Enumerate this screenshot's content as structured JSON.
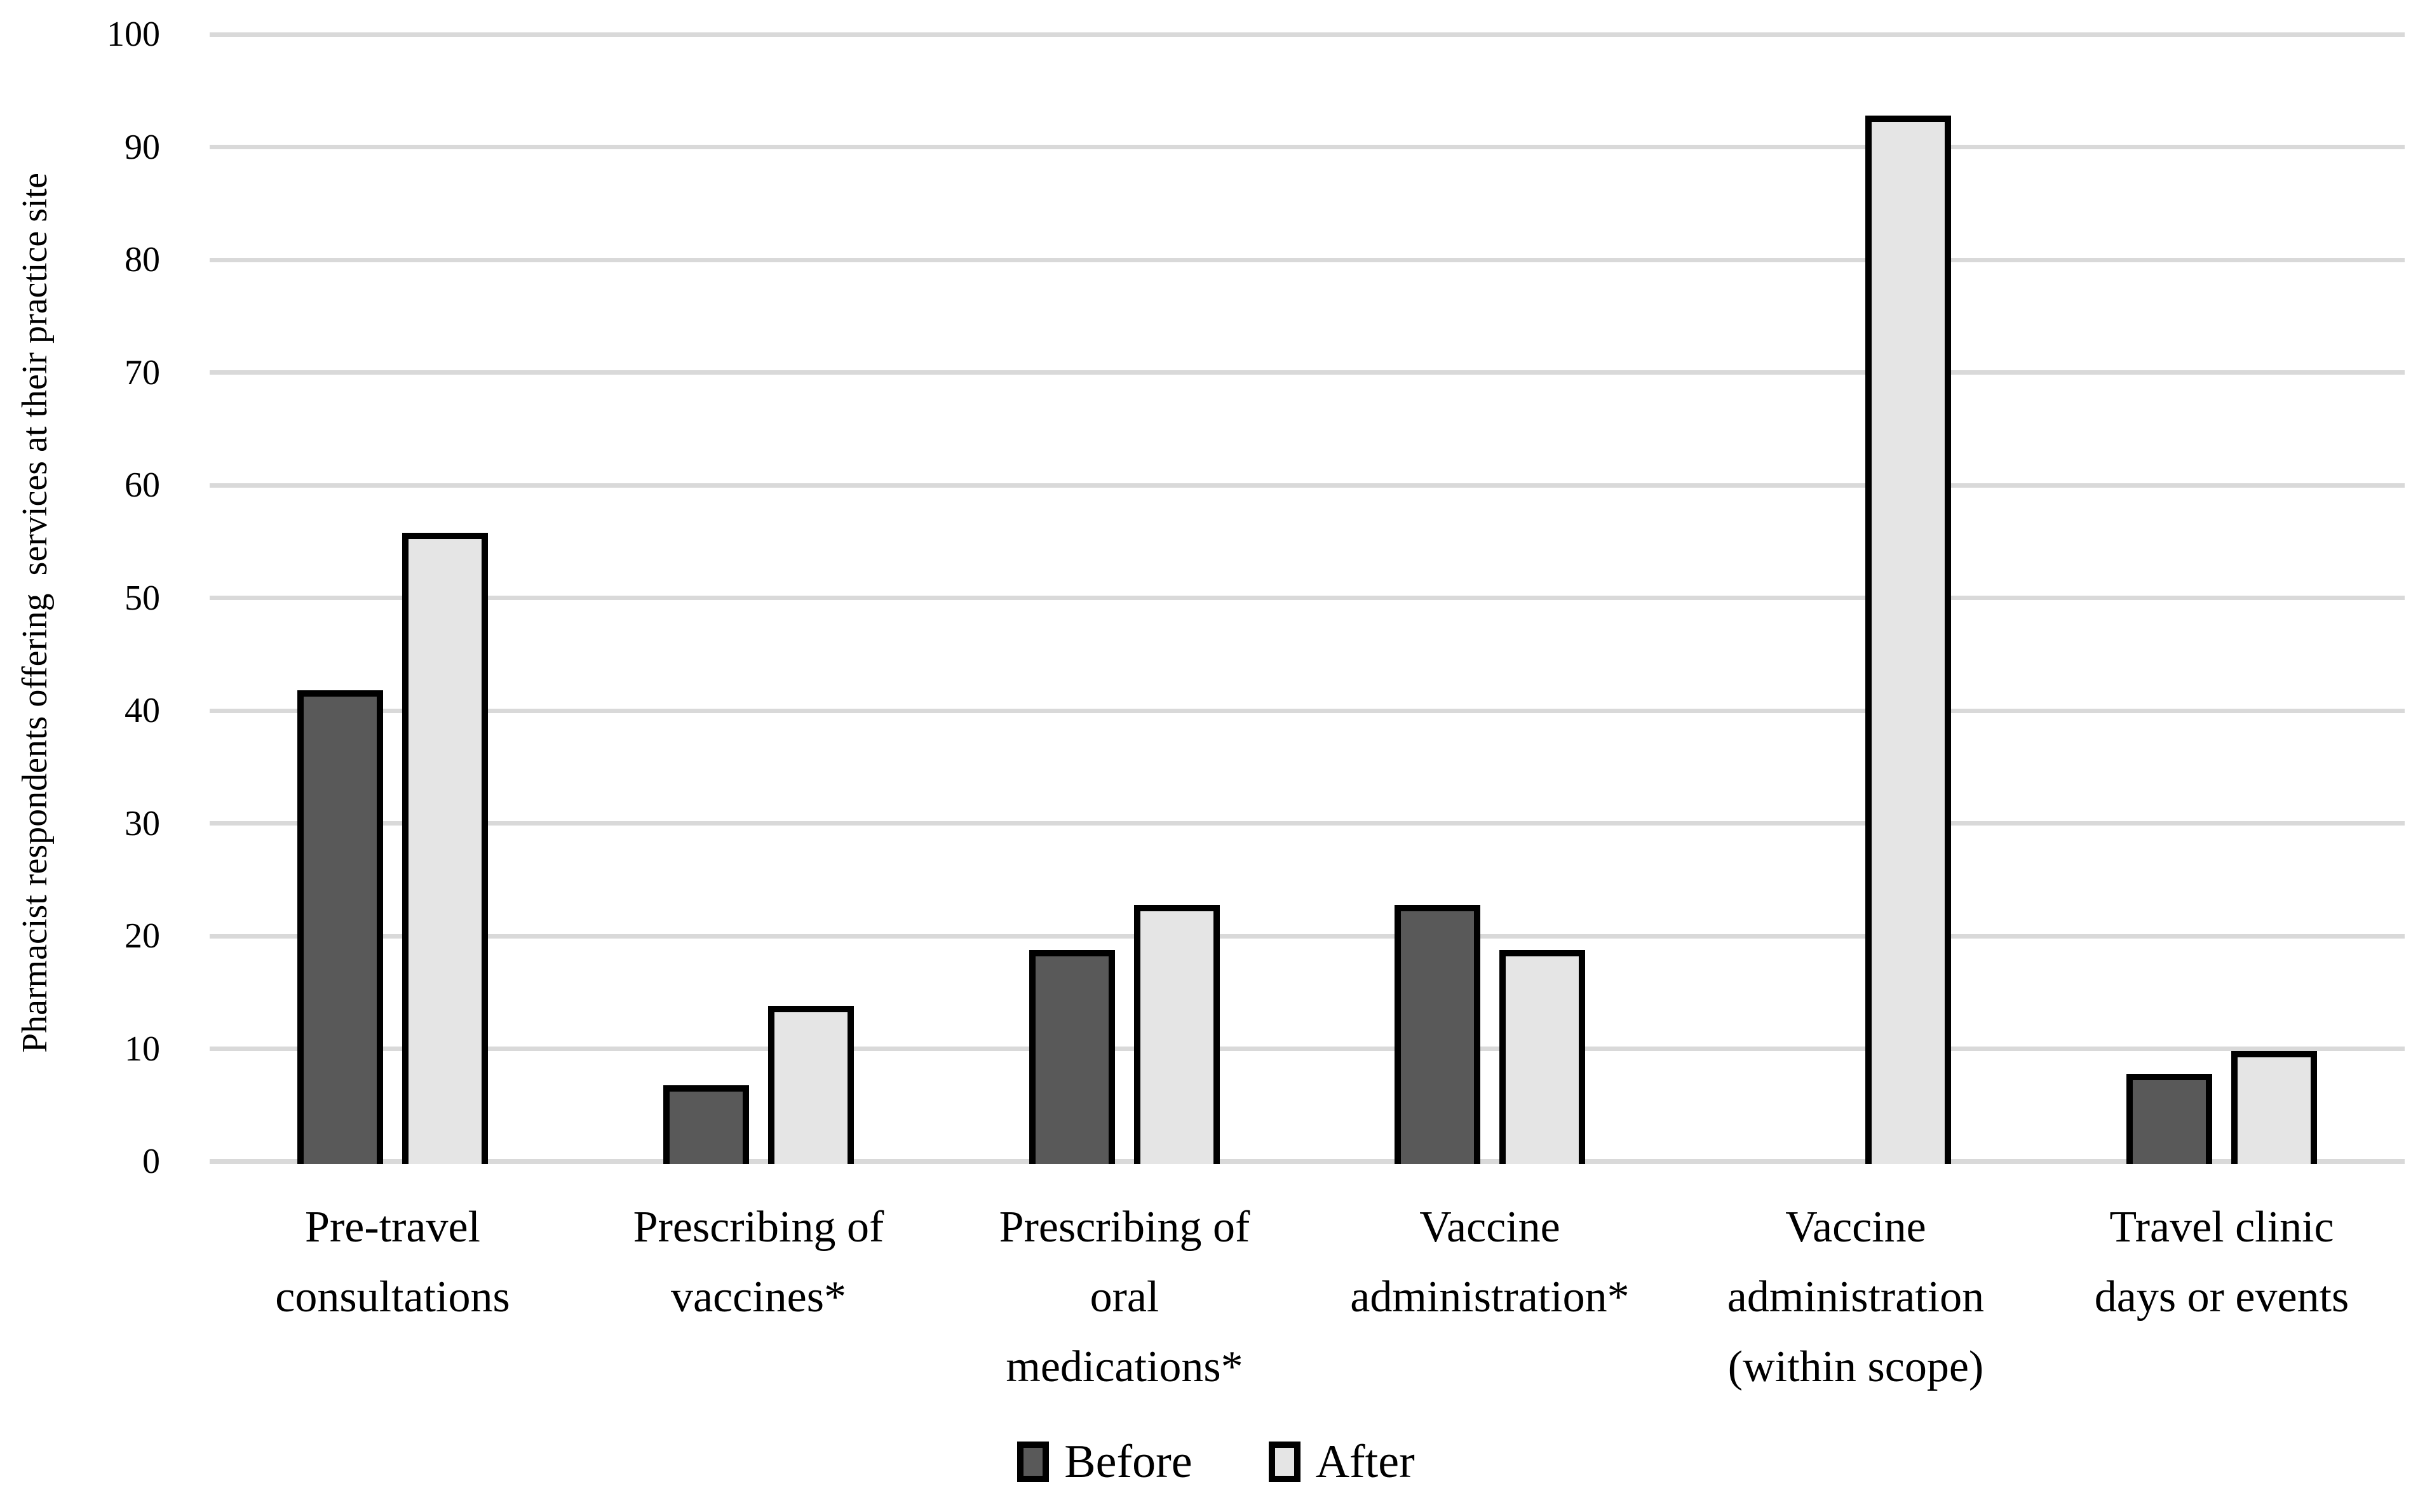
{
  "chart_data": {
    "type": "bar",
    "title": "",
    "xlabel": "",
    "ylabel": "Pharmacist respondents offering  services at their practice site",
    "ylim": [
      0,
      100
    ],
    "yticks": [
      0,
      10,
      20,
      30,
      40,
      50,
      60,
      70,
      80,
      90,
      100
    ],
    "grid": true,
    "legend_position": "bottom",
    "categories": [
      "Pre-travel\nconsultations",
      "Prescribing of\nvaccines*",
      "Prescribing of\noral\nmedications*",
      "Vaccine\nadministration*",
      "Vaccine\nadministration\n(within scope)",
      "Travel clinic\ndays or events"
    ],
    "series": [
      {
        "name": "Before",
        "color": "#595959",
        "values": [
          42,
          7,
          19,
          23,
          0,
          8
        ]
      },
      {
        "name": "After",
        "color": "#e5e5e5",
        "values": [
          56,
          14,
          23,
          19,
          93,
          10
        ]
      }
    ]
  },
  "legend": {
    "items": [
      {
        "label": "Before",
        "color": "#595959"
      },
      {
        "label": "After",
        "color": "#e5e5e5"
      }
    ]
  },
  "styles": {
    "background": "#ffffff",
    "gridline_color": "#d9d9d9",
    "bar_border_color": "#000000",
    "text_color": "#000000"
  }
}
